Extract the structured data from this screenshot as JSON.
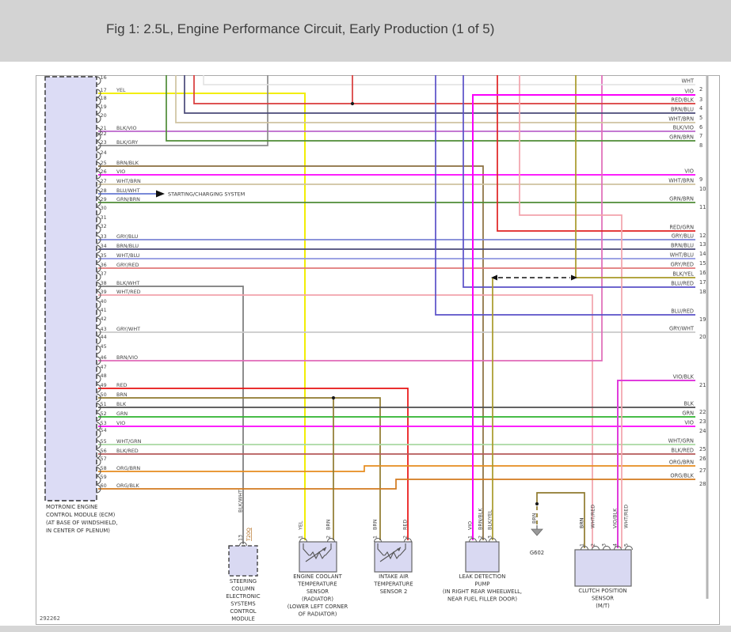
{
  "title": "Fig 1: 2.5L, Engine Performance Circuit, Early Production (1 of 5)",
  "figure_number": "292262",
  "colors": {
    "WHT": "#e0e0e0",
    "YEL": "#f2ee06",
    "VIO": "#fb00fb",
    "RED": "#e81212",
    "RED/BLK": "#d93a3a",
    "RED/GRN": "#e02222",
    "BRN": "#8f7a2e",
    "BRN/BLK": "#8a6f3e",
    "BRN/BLU": "#4a4a78",
    "BRN/VIO": "#e06ab8",
    "BLK": "#4d4d4d",
    "BLK/VIO": "#bb66cc",
    "BLK/GRY": "#8c8c8c",
    "BLK/WHT": "#7a7a7a",
    "BLK/RED": "#b45a5a",
    "BLK/YEL": "#a89a28",
    "GRN": "#2db32d",
    "GRN/BRN": "#4e8c36",
    "GRY/BLU": "#7b84d6",
    "GRY/RED": "#e07878",
    "GRY/WHT": "#c9c9c9",
    "WHT/BRN": "#cfc3a0",
    "WHT/BLU": "#8f96e0",
    "WHT/GRN": "#a9d8a2",
    "WHT/RED": "#f2a3ac",
    "BLU/WHT": "#6678d2",
    "BLU/RED": "#5a50c8",
    "ORG/BRN": "#e68c1e",
    "ORG/BLK": "#d2791e",
    "VIO/BLK": "#e03cdc"
  },
  "ecm": {
    "caption": [
      "MOTRONIC ENGINE",
      "CONTROL MODULE (ECM)",
      "(AT BASE OF WINDSHIELD,",
      "IN CENTER OF PLENUM)"
    ],
    "pins": [
      {
        "n": 16,
        "label": ""
      },
      {
        "n": 17,
        "label": "YEL"
      },
      {
        "n": 18,
        "label": ""
      },
      {
        "n": 19,
        "label": ""
      },
      {
        "n": 20,
        "label": ""
      },
      {
        "n": 21,
        "label": "BLK/VIO"
      },
      {
        "n": 22,
        "label": ""
      },
      {
        "n": 23,
        "label": "BLK/GRY"
      },
      {
        "n": 24,
        "label": ""
      },
      {
        "n": 25,
        "label": "BRN/BLK"
      },
      {
        "n": 26,
        "label": "VIO"
      },
      {
        "n": 27,
        "label": "WHT/BRN"
      },
      {
        "n": 28,
        "label": "BLU/WHT"
      },
      {
        "n": 29,
        "label": "GRN/BRN"
      },
      {
        "n": 30,
        "label": ""
      },
      {
        "n": 31,
        "label": ""
      },
      {
        "n": 32,
        "label": ""
      },
      {
        "n": 33,
        "label": "GRY/BLU"
      },
      {
        "n": 34,
        "label": "BRN/BLU"
      },
      {
        "n": 35,
        "label": "WHT/BLU"
      },
      {
        "n": 36,
        "label": "GRY/RED"
      },
      {
        "n": 37,
        "label": ""
      },
      {
        "n": 38,
        "label": "BLK/WHT"
      },
      {
        "n": 39,
        "label": "WHT/RED"
      },
      {
        "n": 40,
        "label": ""
      },
      {
        "n": 41,
        "label": ""
      },
      {
        "n": 42,
        "label": ""
      },
      {
        "n": 43,
        "label": "GRY/WHT"
      },
      {
        "n": 44,
        "label": ""
      },
      {
        "n": 45,
        "label": ""
      },
      {
        "n": 46,
        "label": "BRN/VIO"
      },
      {
        "n": 47,
        "label": ""
      },
      {
        "n": 48,
        "label": ""
      },
      {
        "n": 49,
        "label": "RED"
      },
      {
        "n": 50,
        "label": "BRN"
      },
      {
        "n": 51,
        "label": "BLK"
      },
      {
        "n": 52,
        "label": "GRN"
      },
      {
        "n": 53,
        "label": "VIO"
      },
      {
        "n": 54,
        "label": ""
      },
      {
        "n": 55,
        "label": "WHT/GRN"
      },
      {
        "n": 56,
        "label": "BLK/RED"
      },
      {
        "n": 57,
        "label": ""
      },
      {
        "n": 58,
        "label": "ORG/BRN"
      },
      {
        "n": 59,
        "label": ""
      },
      {
        "n": 60,
        "label": "ORG/BLK"
      }
    ]
  },
  "right_connector": {
    "pins": [
      {
        "n": 2,
        "label": "WHT"
      },
      {
        "n": 3,
        "label": "VIO"
      },
      {
        "n": 4,
        "label": "RED/BLK"
      },
      {
        "n": 5,
        "label": "BRN/BLU"
      },
      {
        "n": 6,
        "label": "WHT/BRN"
      },
      {
        "n": 7,
        "label": "BLK/VIO"
      },
      {
        "n": 8,
        "label": "GRN/BRN"
      },
      {
        "n": 9,
        "label": "VIO"
      },
      {
        "n": 10,
        "label": "WHT/BRN"
      },
      {
        "n": 11,
        "label": "GRN/BRN"
      },
      {
        "n": 12,
        "label": "RED/GRN"
      },
      {
        "n": 13,
        "label": "GRY/BLU"
      },
      {
        "n": 14,
        "label": "BRN/BLU"
      },
      {
        "n": 15,
        "label": "WHT/BLU"
      },
      {
        "n": 16,
        "label": "GRY/RED"
      },
      {
        "n": 17,
        "label": "BLK/YEL"
      },
      {
        "n": 18,
        "label": "BLU/RED"
      },
      {
        "n": 19,
        "label": "BLU/RED"
      },
      {
        "n": 20,
        "label": "GRY/WHT"
      },
      {
        "n": 21,
        "label": "VIO/BLK"
      },
      {
        "n": 22,
        "label": "BLK"
      },
      {
        "n": 23,
        "label": "GRN"
      },
      {
        "n": 24,
        "label": "VIO"
      },
      {
        "n": 25,
        "label": "WHT/GRN"
      },
      {
        "n": 26,
        "label": "BLK/RED"
      },
      {
        "n": 27,
        "label": "ORG/BRN"
      },
      {
        "n": 28,
        "label": "ORG/BLK"
      }
    ]
  },
  "annotations": {
    "starting_charging": "STARTING/CHARGING SYSTEM",
    "ground_label": "G602",
    "scm_connector": "T20Q",
    "scm_pin": "13"
  },
  "components": [
    {
      "id": "scm",
      "caption": [
        "STEERING",
        "COLUMN",
        "ELECTRONIC",
        "SYSTEMS",
        "CONTROL",
        "MODULE"
      ],
      "pins": [
        {
          "n": "13",
          "label": "BLK/WHT"
        }
      ]
    },
    {
      "id": "ect",
      "caption": [
        "ENGINE COOLANT",
        "TEMPERATURE",
        "SENSOR",
        "(RADIATOR)",
        "(LOWER LEFT CORNER",
        "OF RADIATOR)"
      ],
      "pins": [
        {
          "n": "1",
          "label": "YEL"
        },
        {
          "n": "2",
          "label": "BRN"
        }
      ]
    },
    {
      "id": "iat2",
      "caption": [
        "INTAKE AIR",
        "TEMPERATURE",
        "SENSOR 2"
      ],
      "pins": [
        {
          "n": "1",
          "label": "BRN"
        },
        {
          "n": "2",
          "label": "RED"
        }
      ]
    },
    {
      "id": "ldp",
      "caption": [
        "LEAK DETECTION",
        "PUMP",
        "(IN RIGHT REAR WHEELWELL,",
        "NEAR FUEL FILLER DOOR)"
      ],
      "pins": [
        {
          "n": "1",
          "label": "VIO"
        },
        {
          "n": "2",
          "label": "BRN/BLK"
        },
        {
          "n": "3",
          "label": "BLK/YEL"
        }
      ]
    },
    {
      "id": "cps",
      "caption": [
        "CLUTCH POSITION",
        "SENSOR",
        "(M/T)"
      ],
      "pins": [
        {
          "n": "1",
          "label": "BRN"
        },
        {
          "n": "2",
          "label": "WHT/RED"
        },
        {
          "n": "3",
          "label": ""
        },
        {
          "n": "4",
          "label": "VIO/BLK"
        },
        {
          "n": "5",
          "label": "WHT/RED"
        }
      ]
    }
  ]
}
